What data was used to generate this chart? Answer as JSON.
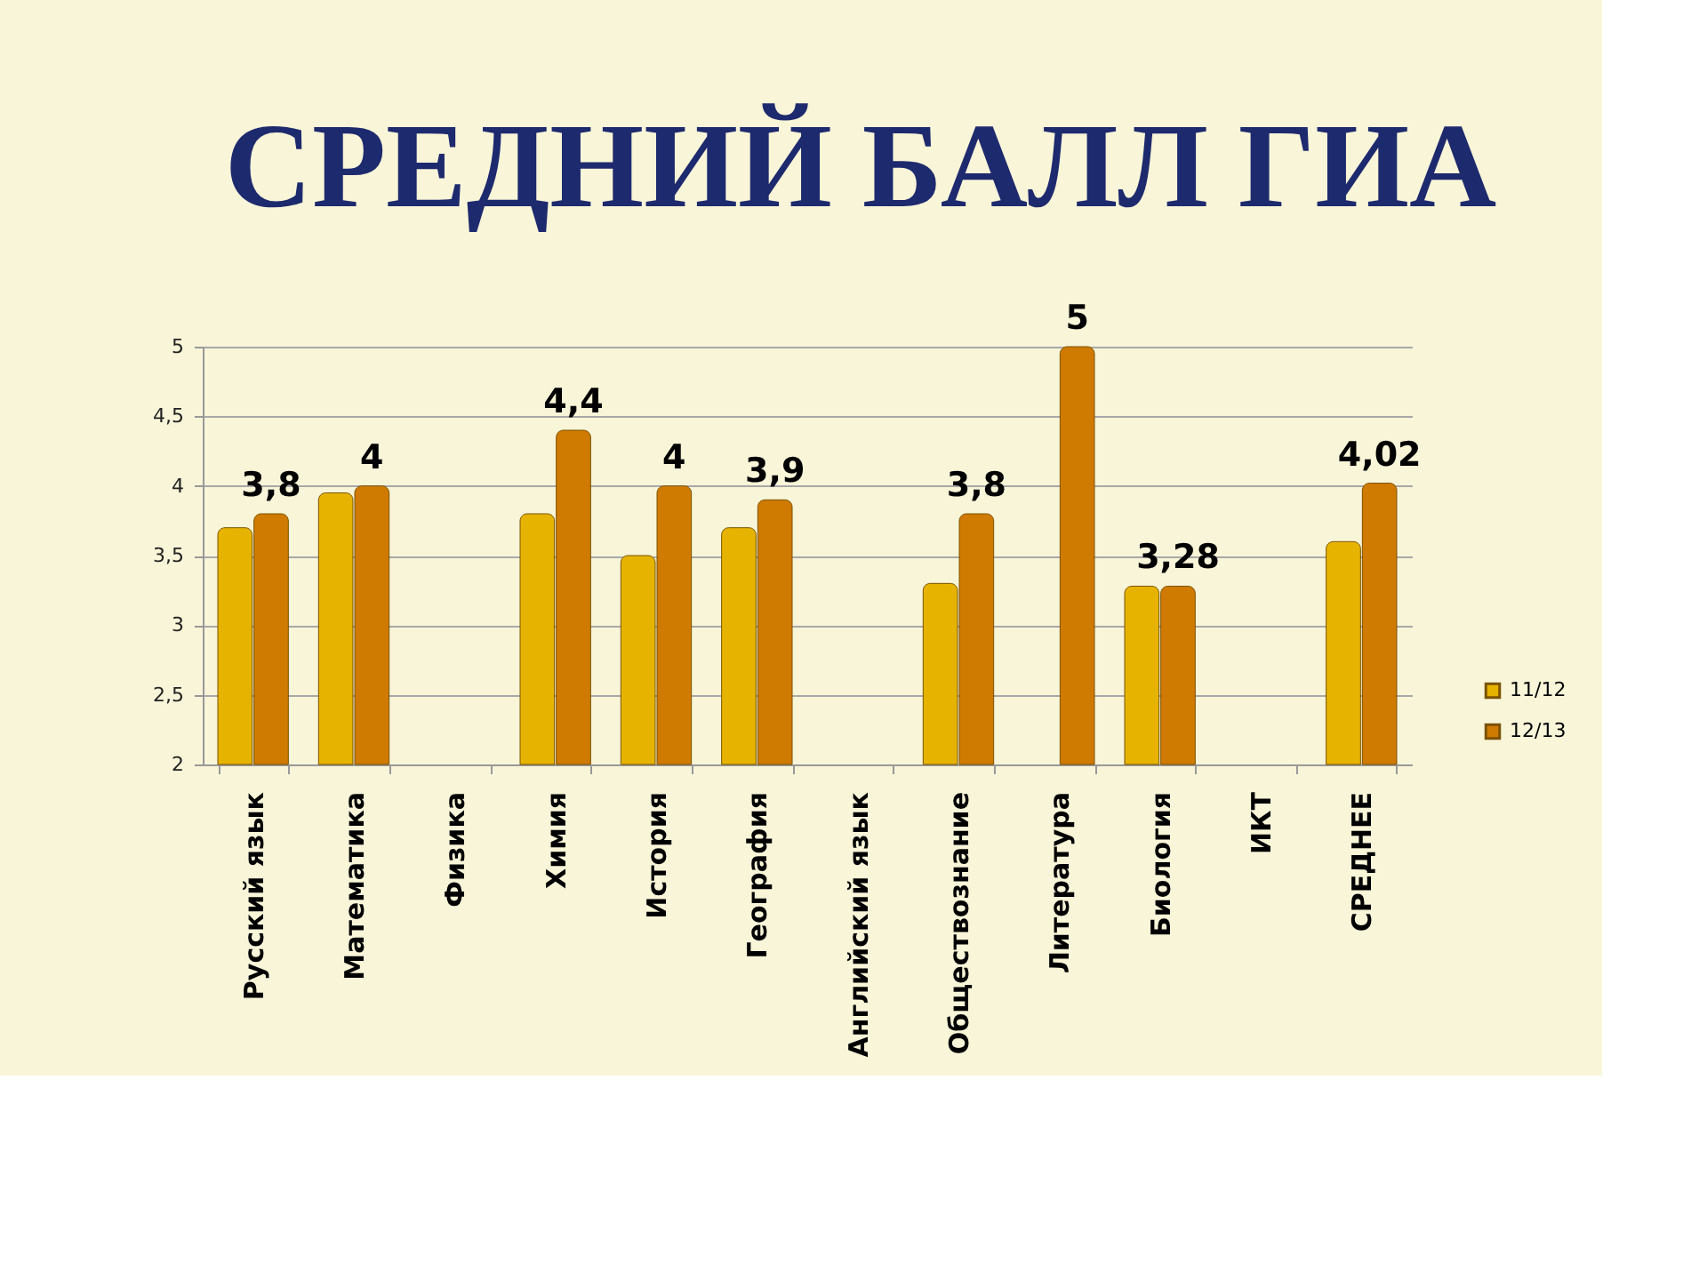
{
  "chart_data": {
    "type": "bar",
    "title": "СРЕДНИЙ БАЛЛ ГИА",
    "categories": [
      "Русский язык",
      "Математика",
      "Физика",
      "Химия",
      "История",
      "География",
      "Английский язык",
      "Обществознание",
      "Литература",
      "Биология",
      "ИКТ",
      "СРЕДНЕЕ"
    ],
    "series": [
      {
        "name": "11/12",
        "color": "#e6b400",
        "values": [
          3.7,
          3.95,
          null,
          3.8,
          3.5,
          3.7,
          null,
          3.3,
          null,
          3.28,
          null,
          3.6
        ]
      },
      {
        "name": "12/13",
        "color": "#cf7a00",
        "values": [
          3.8,
          4,
          null,
          4.4,
          4,
          3.9,
          null,
          3.8,
          5,
          3.28,
          null,
          4.02
        ],
        "value_labels": [
          "3,8",
          "4",
          null,
          "4,4",
          "4",
          "3,9",
          null,
          "3,8",
          "5",
          "3,28",
          null,
          "4,02"
        ]
      }
    ],
    "ylim": [
      2,
      5
    ],
    "yticks": [
      2,
      {
        "value": 2.5,
        "label": "2,5"
      },
      3,
      {
        "value": 3.5,
        "label": "3,5"
      },
      4,
      {
        "value": 4.5,
        "label": "4,5"
      },
      5
    ],
    "grid": "y",
    "legend": "right"
  }
}
